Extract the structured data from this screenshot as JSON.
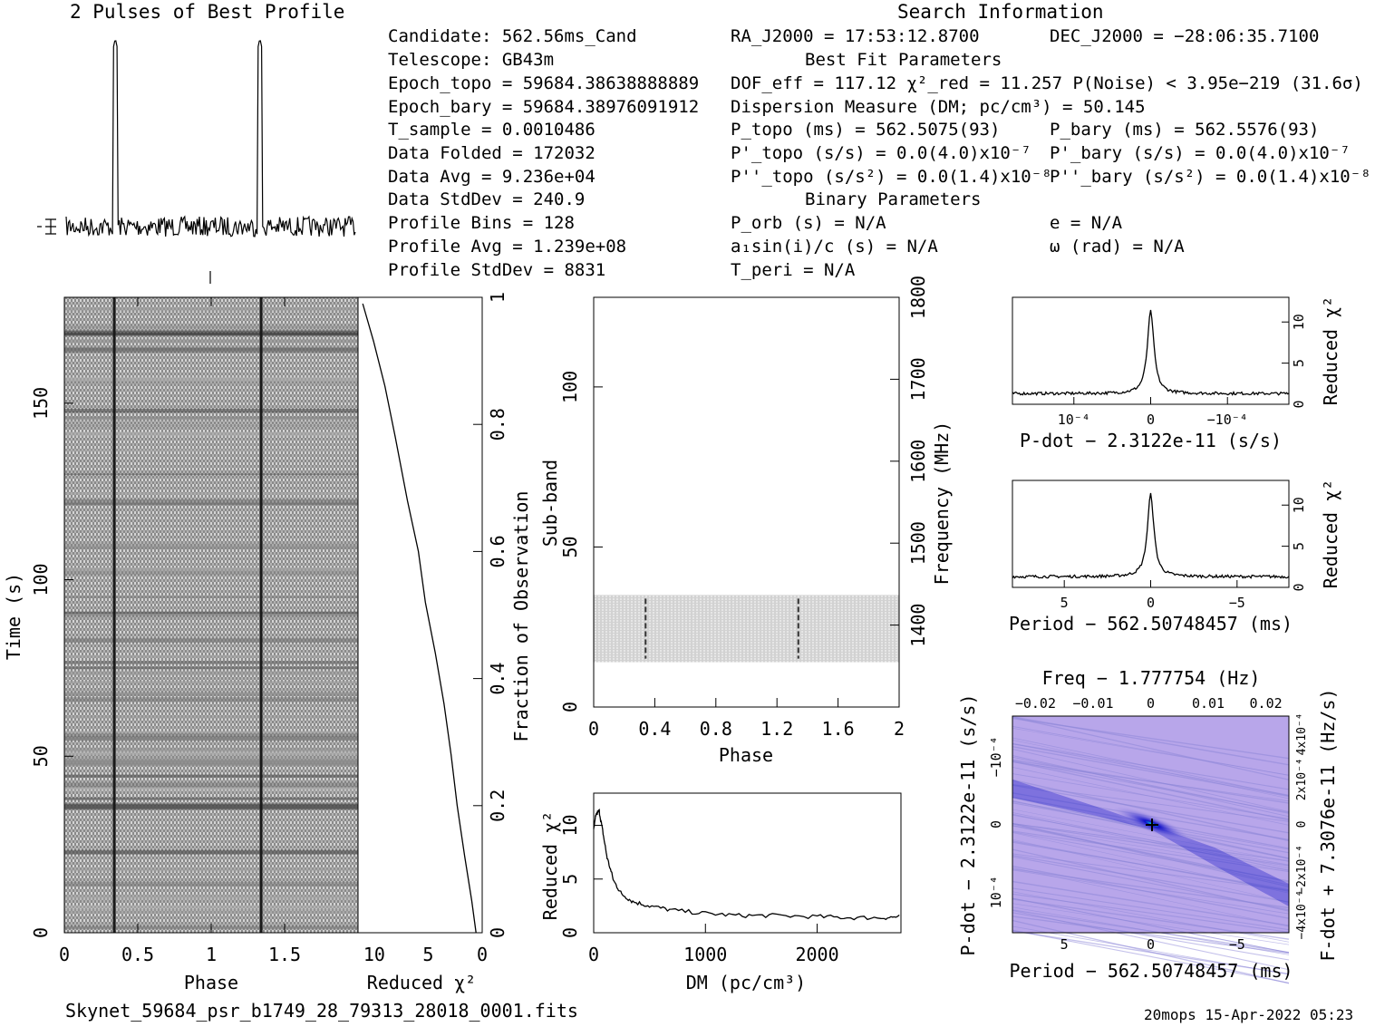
{
  "header": {
    "profile_title": "2 Pulses of Best Profile",
    "search_title": "Search Information",
    "best_fit_title": "Best Fit Parameters",
    "binary_title": "Binary Parameters"
  },
  "info_left": [
    "Candidate:  562.56ms_Cand",
    "Telescope:  GB43m",
    "Epoch_topo = 59684.38638888889",
    "Epoch_bary = 59684.38976091912",
    "T_sample       =  0.0010486",
    "Data Folded    =  172032",
    "Data Avg       =  9.236e+04",
    "Data StdDev    =  240.9",
    "Profile Bins   =  128",
    "Profile Avg    =  1.239e+08",
    "Profile StdDev =  8831"
  ],
  "info_mid": {
    "ra": "RA_J2000 = 17:53:12.8700",
    "dof_line": "DOF_eff = 117.12  χ²_red = 11.257  P(Noise) < 3.95e−219  (31.6σ)",
    "dm_line": "Dispersion Measure (DM; pc/cm³) = 50.145",
    "ptopo": "P_topo (ms) =  562.5075(93)",
    "pdtopo": "P'_topo (s/s) = 0.0(4.0)x10⁻⁷",
    "pddtopo": "P''_topo (s/s²) = 0.0(1.4)x10⁻⁸",
    "porb": "P_orb (s) = N/A",
    "asini": "a₁sin(i)/c (s) = N/A",
    "tperi": "T_peri = N/A"
  },
  "info_right": {
    "dec": "DEC_J2000 = −28:06:35.7100",
    "pbary": "P_bary (ms) =  562.5576(93)",
    "pdbary": "P'_bary (s/s) = 0.0(4.0)x10⁻⁷",
    "pddbary": "P''_bary (s/s²) = 0.0(1.4)x10⁻⁸",
    "ecc": "e = N/A",
    "omega": "ω (rad) = N/A"
  },
  "footer": {
    "filename": "Skynet_59684_psr_b1749_28_79313_28018_0001.fits",
    "stamp": "20mops 15-Apr-2022 05:23"
  },
  "colors": {
    "ink": "#000000",
    "ppdot_bg": "#b8a6ea",
    "ppdot_peak": "#1010c8",
    "ppdot_core": "#00c8c8"
  },
  "chart_data": [
    {
      "type": "line",
      "title": "2 Pulses of Best Profile",
      "xlabel": "",
      "ylabel": "",
      "x_range": [
        0,
        2
      ],
      "series": [
        {
          "peaks_at_phase": [
            0.34,
            1.34
          ],
          "baseline": "noise"
        }
      ]
    },
    {
      "type": "heatmap",
      "xlabel": "Phase",
      "ylabel": "Time (s)",
      "xlim": [
        0,
        2
      ],
      "ylim": [
        0,
        180
      ],
      "xticks": [
        "0",
        "0.5",
        "1",
        "1.5"
      ],
      "yticks": [
        "0",
        "50",
        "100",
        "150"
      ],
      "pulse_phases": [
        0.34,
        1.34
      ]
    },
    {
      "type": "line",
      "xlabel": "Reduced χ²",
      "ylabel": "Fraction of Observation",
      "xlim": [
        11.5,
        0
      ],
      "ylim": [
        0,
        1
      ],
      "xticks": [
        "10",
        "5",
        "0"
      ],
      "yticks": [
        "0",
        "0.2",
        "0.4",
        "0.6",
        "0.8",
        "1"
      ],
      "x": [
        0.5,
        1.0,
        1.6,
        2.2,
        2.8,
        3.6,
        4.4,
        5.2,
        6.0,
        7.0,
        8.0,
        9.0,
        10.0,
        11.0
      ],
      "y": [
        0.0,
        0.05,
        0.12,
        0.2,
        0.28,
        0.36,
        0.44,
        0.52,
        0.6,
        0.68,
        0.78,
        0.86,
        0.93,
        0.99
      ]
    },
    {
      "type": "heatmap",
      "xlabel": "Phase",
      "ylabel": "Sub-band",
      "y2label": "Frequency (MHz)",
      "xlim": [
        0,
        2
      ],
      "ylim": [
        0,
        128
      ],
      "xticks": [
        "0",
        "0.4",
        "0.8",
        "1.2",
        "1.6",
        "2"
      ],
      "yticks": [
        "0",
        "50",
        "100"
      ],
      "y2ticks": [
        "1400",
        "1500",
        "1600",
        "1700",
        "1800"
      ],
      "active_subbands": [
        14,
        35
      ],
      "pulse_phases": [
        0.34,
        1.34
      ]
    },
    {
      "type": "line",
      "xlabel": "DM (pc/cm³)",
      "ylabel": "Reduced χ²",
      "xlim": [
        0,
        2750
      ],
      "ylim": [
        0,
        13
      ],
      "xticks": [
        "0",
        "1000",
        "2000"
      ],
      "yticks": [
        "0",
        "5",
        "10"
      ],
      "x": [
        0,
        20,
        50,
        80,
        120,
        180,
        250,
        350,
        500,
        700,
        1000,
        1300,
        1600,
        2000,
        2300,
        2600,
        2750
      ],
      "y": [
        9.5,
        11.0,
        11.3,
        9.5,
        7.0,
        4.8,
        3.6,
        2.9,
        2.5,
        2.1,
        1.8,
        1.6,
        1.6,
        1.5,
        1.4,
        1.4,
        1.5
      ]
    },
    {
      "type": "line",
      "xlabel": "P-dot − 2.3122e-11 (s/s)",
      "ylabel": "Reduced χ²",
      "xlim": [
        0.00018,
        -0.00018
      ],
      "ylim": [
        0,
        13
      ],
      "xticks": [
        "10⁻⁴",
        "0",
        "−10⁻⁴"
      ],
      "yticks": [
        "0",
        "5",
        "10"
      ],
      "peak": {
        "x": 0,
        "y": 11.3
      },
      "baseline": 1.3
    },
    {
      "type": "line",
      "xlabel": "Period − 562.50748457 (ms)",
      "ylabel": "Reduced χ²",
      "xlim": [
        8,
        -8
      ],
      "ylim": [
        0,
        13
      ],
      "xticks": [
        "5",
        "0",
        "−5"
      ],
      "yticks": [
        "0",
        "5",
        "10"
      ],
      "peak": {
        "x": 0,
        "y": 11.3
      },
      "baseline": 1.3
    },
    {
      "type": "heatmap",
      "xlabel": "Period − 562.50748457 (ms)",
      "ylabel": "P-dot − 2.3122e-11 (s/s)",
      "x2label": "Freq − 1.777754 (Hz)",
      "y2label": "F-dot + 7.3076e-11 (Hz/s)",
      "xticks": [
        "5",
        "0",
        "−5"
      ],
      "x2ticks": [
        "−0.02",
        "−0.01",
        "0",
        "0.01",
        "0.02"
      ],
      "yticks": [
        "10⁻⁴",
        "0",
        "−10⁻⁴"
      ],
      "y2ticks": [
        "−4x10⁻⁴",
        "−2x10⁻⁴",
        "0",
        "2x10⁻⁴",
        "4x10⁻⁴"
      ],
      "best": {
        "x": 0,
        "y": 0
      }
    }
  ]
}
